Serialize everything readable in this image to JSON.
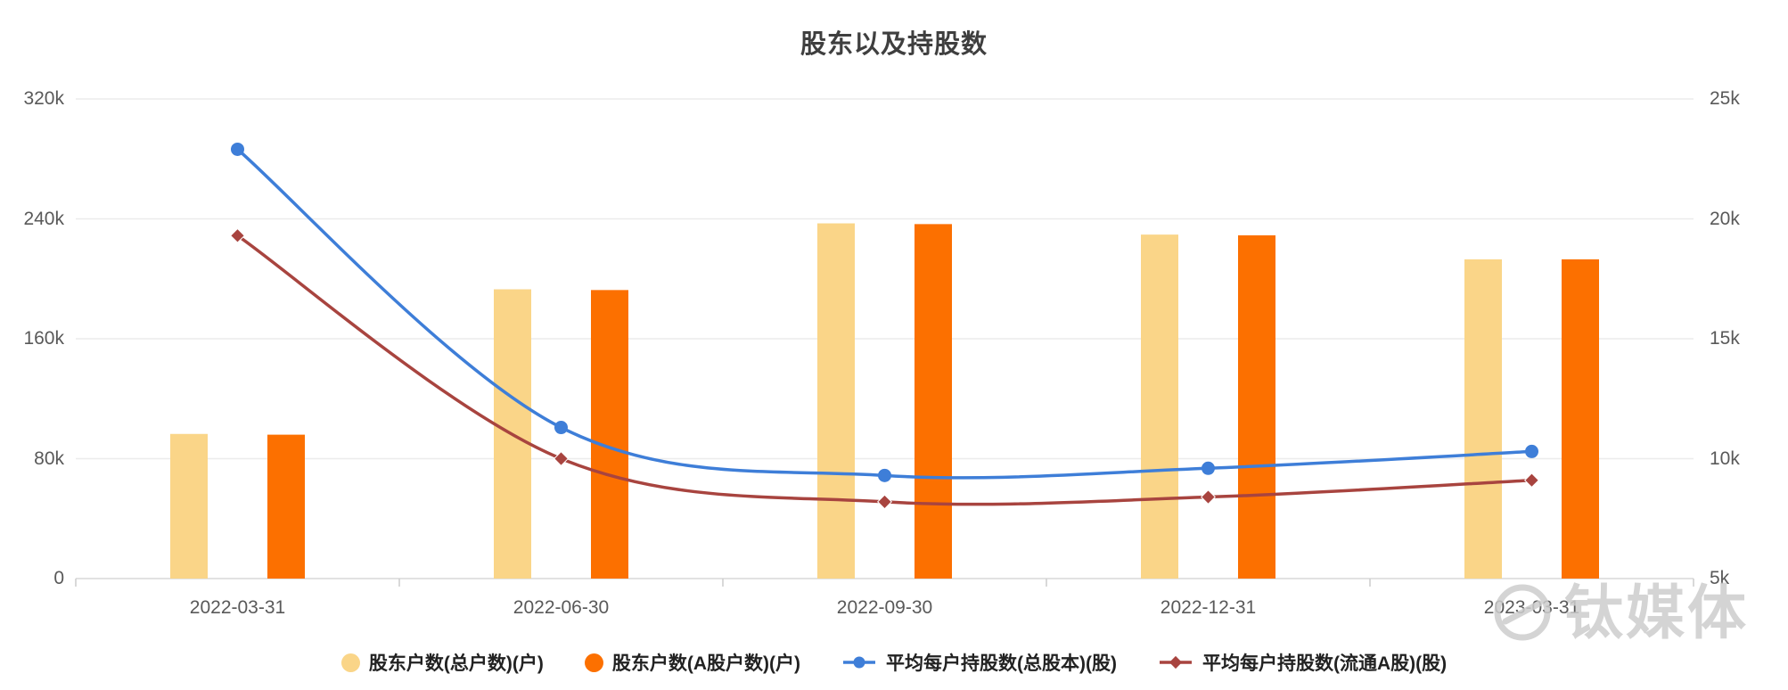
{
  "title": "股东以及持股数",
  "watermark": {
    "logo_icon": "tmt-circle-logo",
    "text": "钛媒体"
  },
  "chart_data": {
    "type": "bar",
    "subtype": "dual-axis bar+line combo",
    "title": "股东以及持股数",
    "categories": [
      "2022-03-31",
      "2022-06-30",
      "2022-09-30",
      "2022-12-31",
      "2023-03-31"
    ],
    "series": [
      {
        "name": "股东户数(总户数)(户)",
        "type": "bar",
        "axis": "left",
        "color": "#FAD588",
        "marker": "circle",
        "values": [
          96500,
          193000,
          237000,
          229500,
          213000
        ]
      },
      {
        "name": "股东户数(A股户数)(户)",
        "type": "bar",
        "axis": "left",
        "color": "#FC7000",
        "marker": "circle",
        "values": [
          96000,
          192500,
          236500,
          229000,
          213000
        ]
      },
      {
        "name": "平均每户持股数(总股本)(股)",
        "type": "line",
        "axis": "right",
        "color": "#3E7ED8",
        "marker": "circle",
        "values": [
          22900,
          11300,
          9300,
          9600,
          10300
        ]
      },
      {
        "name": "平均每户持股数(流通A股)(股)",
        "type": "line",
        "axis": "right",
        "color": "#A8443F",
        "marker": "diamond",
        "values": [
          19300,
          10000,
          8200,
          8400,
          9100
        ]
      }
    ],
    "left_axis": {
      "min": 0,
      "max": 320000,
      "ticks": [
        "0",
        "80k",
        "160k",
        "240k",
        "320k"
      ]
    },
    "right_axis": {
      "min": 5000,
      "max": 25000,
      "ticks": [
        "5k",
        "10k",
        "15k",
        "20k",
        "25k"
      ]
    },
    "grid": true,
    "legend_position": "bottom",
    "colors": {
      "grid_line": "#ECECEC",
      "axis_line": "#D9D9D9",
      "tick_line": "#CCCCCC",
      "axis_text": "#595959",
      "legend_text": "#222222",
      "title_text": "#3F3F3F",
      "watermark": "#CDCDCD"
    }
  }
}
